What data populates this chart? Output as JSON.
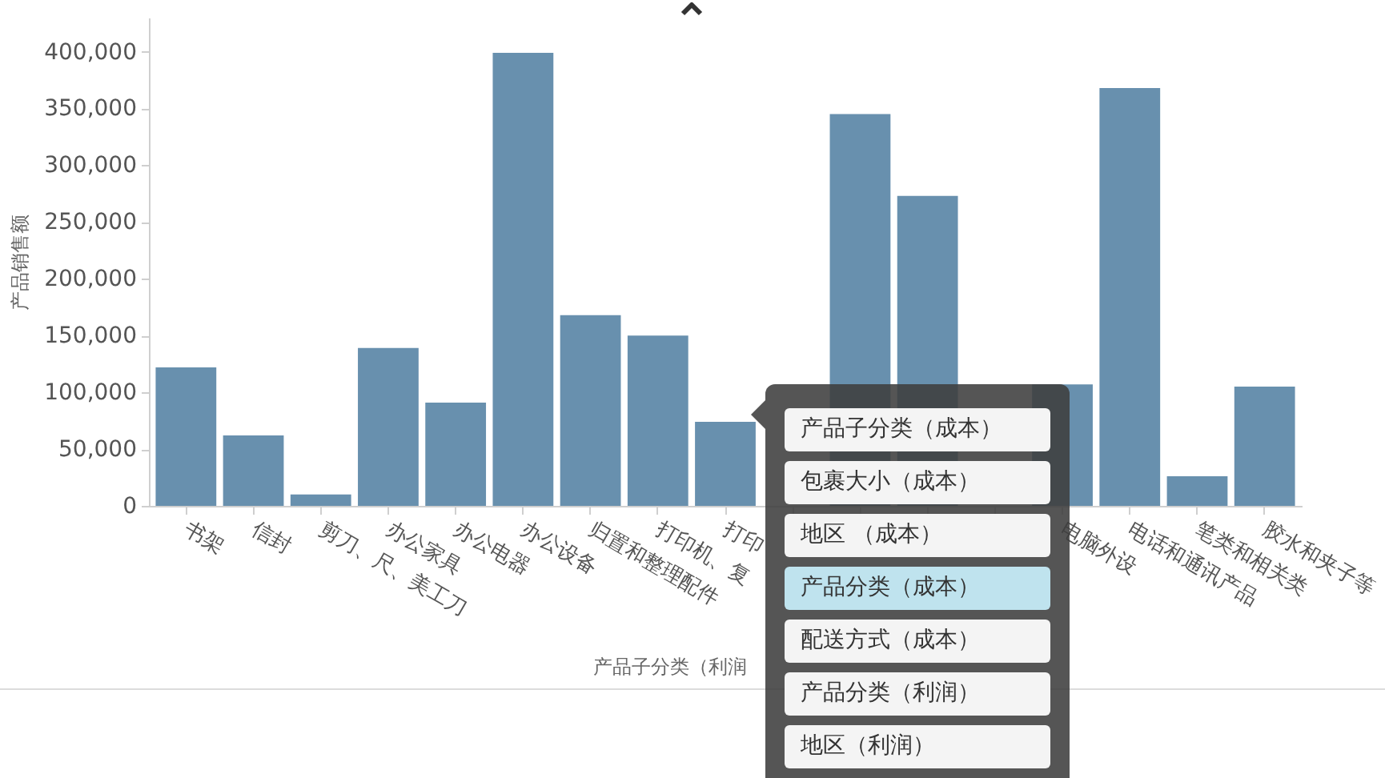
{
  "chart_data": [
    {
      "type": "bar",
      "xlabel": "产品子分类（利润",
      "ylabel": "产品销售额",
      "categories": [
        "书架",
        "信封",
        "剪刀、尺、美工刀",
        "办公家具",
        "办公电器",
        "办公设备",
        "归置和整理配件",
        "打印机、复",
        "打印",
        null,
        null,
        null,
        null,
        "电脑外设",
        "电话和通讯产品",
        "笔类和相关类",
        "胶水和夹子等"
      ],
      "values": [
        122000,
        62000,
        10000,
        139000,
        91000,
        399000,
        168000,
        150000,
        74000,
        null,
        345000,
        273000,
        null,
        107000,
        368000,
        26000,
        105000
      ],
      "color": "#6890ae",
      "ylim": [
        0,
        430000
      ],
      "yticks": [
        0,
        {
          "value": 50000,
          "label": "50,000"
        },
        {
          "value": 100000,
          "label": "100,000"
        },
        {
          "value": 150000,
          "label": "150,000"
        },
        {
          "value": 200000,
          "label": "200,000"
        },
        {
          "value": 250000,
          "label": "250,000"
        },
        {
          "value": 300000,
          "label": "300,000"
        },
        {
          "value": 350000,
          "label": "350,000"
        },
        {
          "value": 400000,
          "label": "400,000"
        }
      ]
    },
    {
      "type": "other",
      "annotations": [
        "产品子分类（成本）",
        "包裹大小（成本）",
        "地区 （成本）",
        "产品分类（成本）",
        "配送方式（成本）",
        "产品分类（利润）",
        "地区（利润）"
      ]
    }
  ]
}
